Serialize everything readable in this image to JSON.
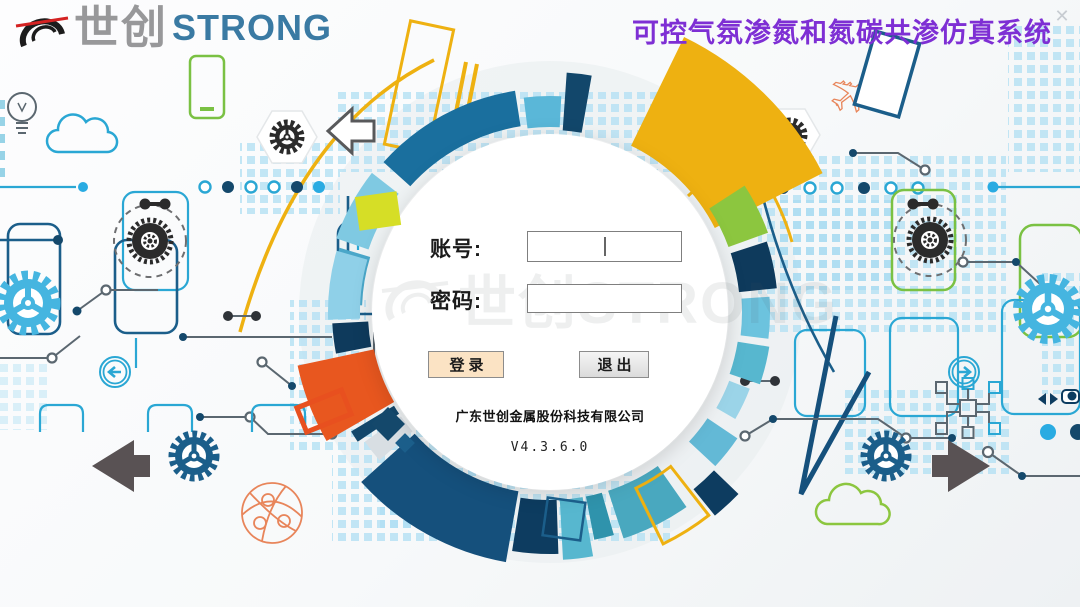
{
  "window": {
    "close_icon": "✕"
  },
  "brand": {
    "logo_cn": "世创",
    "logo_en": "STRONG"
  },
  "header": {
    "title": "可控气氛渗氮和氮碳共渗仿真系统"
  },
  "login": {
    "account_label": "账号:",
    "password_label": "密码:",
    "account_value": "",
    "password_value": "",
    "login_button": "登录",
    "exit_button": "退出",
    "company": "广东世创金属股份科技有限公司",
    "version": "V4.3.6.0"
  },
  "watermark": {
    "text": "世创STRONG"
  },
  "colors": {
    "title_purple": "#7e2fd4",
    "accent_blue": "#29abe2",
    "navy": "#15507c",
    "yellow": "#eeb111",
    "orange": "#e8571f",
    "green": "#8cc63f",
    "login_button_bg": "#fbe3c4",
    "exit_button_bg": "#e6e6e6"
  }
}
